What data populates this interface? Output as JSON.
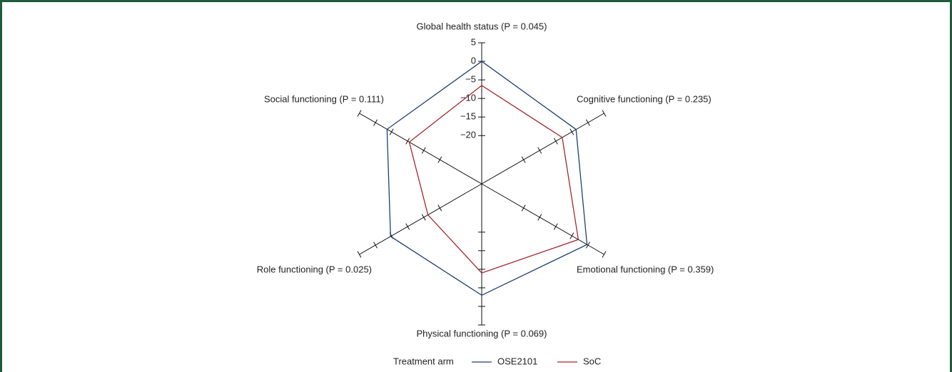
{
  "chart_data": {
    "type": "radar",
    "axes": [
      "Global health status (P = 0.045)",
      "Cognitive functioning (P = 0.235)",
      "Emotional functioning (P = 0.359)",
      "Physical functioning (P = 0.069)",
      "Role functioning (P = 0.025)",
      "Social functioning (P = 0.111)"
    ],
    "rlim": [
      -33,
      5
    ],
    "rticks": [
      5,
      0,
      {
        "value": -5,
        "label": "−5"
      },
      {
        "value": -10,
        "label": "−10"
      },
      {
        "value": -15,
        "label": "−15"
      },
      {
        "value": -20,
        "label": "−20"
      }
    ],
    "legend_title": "Treatment arm",
    "series": [
      {
        "name": "OSE2101",
        "color": "#1f3f73",
        "values": [
          0,
          -3.7,
          -0.3,
          -3,
          -4.7,
          -3.6
        ]
      },
      {
        "name": "SoC",
        "color": "#a3282c",
        "values": [
          -6.5,
          -8,
          -3,
          -9,
          -16.3,
          -10.5
        ]
      }
    ]
  }
}
